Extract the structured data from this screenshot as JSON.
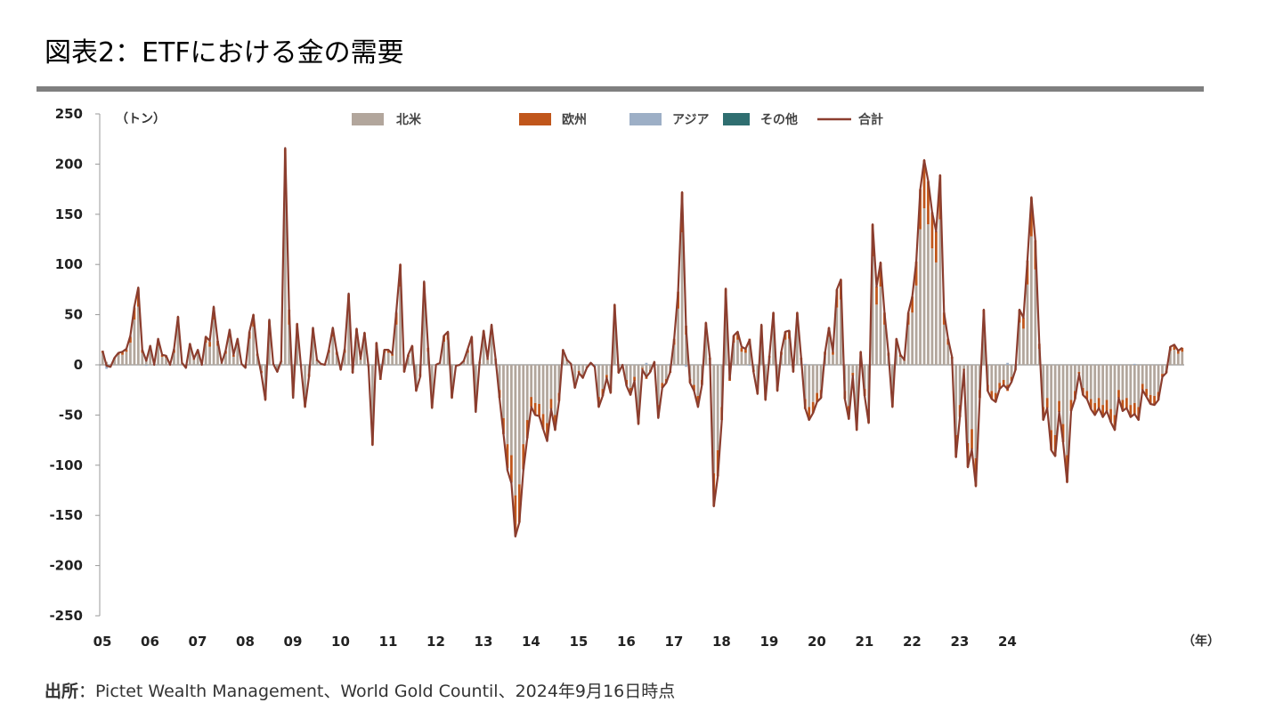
{
  "header": {
    "title": "図表2：ETFにおける金の需要"
  },
  "footer": {
    "source_label": "出所",
    "source_text": "：Pictet Wealth Management、World Gold Countil、2024年9月16日時点"
  },
  "chart_data": {
    "type": "bar",
    "stacked": true,
    "title": "",
    "ylabel": "（トン）",
    "xlabel": "（年）",
    "ylim": [
      -250,
      250
    ],
    "yticks": [
      250,
      200,
      150,
      100,
      50,
      0,
      -50,
      -100,
      -150,
      -200,
      -250
    ],
    "xticks": [
      "05",
      "06",
      "07",
      "08",
      "09",
      "10",
      "11",
      "12",
      "13",
      "14",
      "15",
      "16",
      "17",
      "18",
      "19",
      "20",
      "21",
      "22",
      "23",
      "24"
    ],
    "legend_position": "top",
    "colors": {
      "north_america": "#b2a69c",
      "europe": "#c0561b",
      "asia": "#9dafc6",
      "other": "#2f6e70",
      "total": "#8b3d2e"
    },
    "series": [
      {
        "name": "北米",
        "color": "#b2a69c",
        "values": [
          12,
          3,
          -2,
          6,
          10,
          10,
          13,
          22,
          45,
          58,
          12,
          4,
          15,
          0,
          19,
          8,
          7,
          0,
          12,
          38,
          2,
          -3,
          17,
          5,
          11,
          0,
          22,
          18,
          45,
          19,
          2,
          11,
          27,
          8,
          20,
          1,
          -3,
          26,
          38,
          9,
          -6,
          -25,
          34,
          1,
          -5,
          3,
          170,
          40,
          -23,
          33,
          -2,
          -32,
          -9,
          28,
          4,
          1,
          0,
          12,
          28,
          10,
          -4,
          12,
          55,
          -6,
          28,
          5,
          25,
          -2,
          -62,
          17,
          -12,
          12,
          12,
          9,
          40,
          78,
          -5,
          8,
          15,
          -20,
          -9,
          64,
          13,
          -33,
          0,
          2,
          23,
          25,
          -25,
          -1,
          0,
          3,
          12,
          22,
          -35,
          2,
          26,
          5,
          30,
          5,
          -25,
          -53,
          -79,
          -90,
          -130,
          -119,
          -79,
          -55,
          -32,
          -38,
          -39,
          -49,
          -58,
          -34,
          -50,
          -28,
          12,
          4,
          1,
          -18,
          -6,
          -10,
          -2,
          1,
          0,
          -32,
          -24,
          -10,
          -22,
          47,
          -6,
          0,
          -15,
          -23,
          -12,
          -45,
          -3,
          -11,
          -5,
          2,
          -40,
          -18,
          -14,
          -6,
          20,
          56,
          132,
          30,
          -14,
          -20,
          -31,
          -15,
          32,
          5,
          -108,
          -85,
          -42,
          58,
          -12,
          22,
          25,
          13,
          12,
          20,
          -5,
          -22,
          30,
          -27,
          7,
          40,
          -20,
          10,
          25,
          26,
          -5,
          40,
          5,
          -34,
          -42,
          -37,
          -28,
          -25,
          10,
          28,
          10,
          57,
          65,
          -26,
          -41,
          -8,
          -50,
          10,
          -24,
          -44,
          108,
          60,
          78,
          40,
          9,
          -32,
          20,
          8,
          4,
          40,
          52,
          79,
          135,
          156,
          140,
          116,
          102,
          145,
          40,
          20,
          6,
          -70,
          -40,
          -4,
          -78,
          -64,
          -93,
          -25,
          42,
          -20,
          -26,
          -28,
          -18,
          -15,
          -20,
          -12,
          -4,
          42,
          36,
          80,
          128,
          95,
          16,
          -42,
          -33,
          -65,
          -70,
          -36,
          -59,
          -90,
          -35,
          -26,
          -7,
          -23,
          -26,
          -34,
          -38,
          -33,
          -40,
          -35,
          -44,
          -50,
          -25,
          -35,
          -33,
          -40,
          -38,
          -42,
          -19,
          -24,
          -30,
          -31,
          -27,
          -9,
          -6,
          14,
          15,
          11,
          13
        ]
      },
      {
        "name": "欧州",
        "color": "#c0561b",
        "values": [
          2,
          -1,
          0,
          1,
          2,
          3,
          2,
          6,
          12,
          18,
          3,
          1,
          4,
          0,
          6,
          2,
          2,
          0,
          3,
          10,
          0,
          0,
          4,
          1,
          3,
          0,
          6,
          5,
          12,
          5,
          0,
          3,
          7,
          2,
          5,
          0,
          0,
          7,
          12,
          2,
          -2,
          -10,
          10,
          0,
          -2,
          1,
          45,
          15,
          -8,
          8,
          0,
          -10,
          -3,
          8,
          1,
          0,
          0,
          3,
          8,
          3,
          -1,
          3,
          15,
          -2,
          8,
          1,
          7,
          0,
          -18,
          5,
          -3,
          3,
          3,
          2,
          12,
          22,
          -2,
          2,
          4,
          -6,
          -3,
          18,
          4,
          -10,
          0,
          0,
          6,
          7,
          -8,
          0,
          0,
          1,
          3,
          6,
          -10,
          1,
          8,
          1,
          9,
          1,
          -8,
          -16,
          -24,
          -27,
          -40,
          -38,
          -25,
          -18,
          -10,
          -12,
          -12,
          -15,
          -17,
          -10,
          -15,
          -8,
          3,
          1,
          0,
          -5,
          -2,
          -3,
          -1,
          0,
          0,
          -10,
          -7,
          -3,
          -6,
          13,
          -2,
          0,
          -5,
          -7,
          -4,
          -14,
          -1,
          -3,
          -2,
          1,
          -12,
          -5,
          -4,
          -2,
          6,
          17,
          40,
          9,
          -4,
          -6,
          -10,
          -5,
          10,
          2,
          -33,
          -26,
          -13,
          18,
          -4,
          7,
          8,
          4,
          4,
          6,
          -2,
          -7,
          9,
          -8,
          2,
          12,
          -6,
          3,
          8,
          8,
          -2,
          12,
          2,
          -10,
          -13,
          -11,
          -9,
          -8,
          3,
          9,
          3,
          18,
          20,
          -8,
          -13,
          -3,
          -15,
          3,
          -7,
          -14,
          32,
          18,
          24,
          12,
          3,
          -10,
          6,
          2,
          1,
          12,
          16,
          24,
          40,
          48,
          43,
          36,
          31,
          44,
          12,
          6,
          2,
          -22,
          -12,
          -1,
          -24,
          -20,
          -28,
          -8,
          13,
          -6,
          -8,
          -9,
          -6,
          -5,
          -6,
          -4,
          -1,
          13,
          11,
          24,
          39,
          29,
          5,
          -13,
          -10,
          -20,
          -21,
          -11,
          -18,
          -27,
          -11,
          -8,
          -2,
          -7,
          -8,
          -10,
          -12,
          -10,
          -12,
          -11,
          -13,
          -15,
          -8,
          -11,
          -10,
          -12,
          -12,
          -13,
          -6,
          -7,
          -9,
          -9,
          -8,
          -3,
          -2,
          4,
          5,
          3,
          4
        ]
      },
      {
        "name": "アジア",
        "color": "#9dafc6",
        "values": [
          0,
          -3,
          0,
          0,
          0,
          0,
          1,
          1,
          1,
          1,
          0,
          -1,
          0,
          0,
          1,
          0,
          0,
          0,
          1,
          0,
          0,
          0,
          0,
          0,
          1,
          0,
          0,
          1,
          1,
          0,
          0,
          0,
          1,
          0,
          1,
          0,
          0,
          0,
          0,
          0,
          -1,
          0,
          1,
          0,
          0,
          0,
          1,
          0,
          -2,
          0,
          0,
          0,
          0,
          1,
          0,
          0,
          0,
          0,
          1,
          0,
          0,
          1,
          1,
          0,
          0,
          0,
          0,
          0,
          0,
          0,
          1,
          0,
          0,
          0,
          1,
          0,
          0,
          0,
          0,
          0,
          0,
          1,
          0,
          0,
          0,
          0,
          0,
          1,
          0,
          0,
          0,
          0,
          1,
          0,
          -2,
          0,
          0,
          0,
          1,
          0,
          0,
          0,
          -2,
          -1,
          -1,
          0,
          -1,
          0,
          0,
          0,
          0,
          0,
          -1,
          0,
          0,
          0,
          0,
          0,
          0,
          0,
          0,
          0,
          0,
          1,
          -2,
          0,
          0,
          0,
          0,
          0,
          0,
          0,
          -1,
          0,
          0,
          0,
          -1,
          2,
          0,
          0,
          -1,
          0,
          0,
          1,
          0,
          0,
          0,
          -2,
          0,
          0,
          -1,
          0,
          0,
          0,
          0,
          0,
          0,
          0,
          2,
          0,
          0,
          1,
          0,
          -1,
          0,
          0,
          1,
          0,
          0,
          0,
          0,
          0,
          0,
          0,
          0,
          0,
          0,
          1,
          0,
          0,
          0,
          0,
          -1,
          0,
          0,
          0,
          0,
          0,
          0,
          0,
          0,
          0,
          0,
          0,
          0,
          0,
          0,
          0,
          -1,
          0,
          0,
          0,
          0,
          0,
          0,
          0,
          0,
          0,
          0,
          0,
          0,
          0,
          0,
          0,
          0,
          0,
          0,
          0,
          0,
          0,
          0,
          0,
          0,
          0,
          0,
          0,
          0,
          0,
          2,
          -1,
          0,
          0,
          0,
          0,
          0,
          0,
          0,
          0,
          0,
          0,
          0,
          0,
          0,
          0,
          0,
          0,
          0,
          0,
          0,
          0,
          0,
          0,
          0,
          0,
          0,
          0,
          0,
          0,
          0,
          0,
          1,
          0,
          0,
          -1,
          0,
          0,
          0,
          0,
          0,
          0,
          0,
          0,
          0,
          0,
          -1,
          0,
          0,
          1,
          0,
          0,
          0,
          0,
          0,
          0,
          0,
          0,
          0,
          0,
          0,
          0,
          0,
          0,
          0
        ]
      },
      {
        "name": "その他",
        "color": "#2f6e70",
        "values": [
          0,
          0,
          0,
          0,
          0,
          0,
          0,
          0,
          0,
          0,
          0,
          0,
          0,
          0,
          0,
          0,
          0,
          0,
          0,
          0,
          0,
          0,
          0,
          0,
          0,
          0,
          0,
          0,
          0,
          0,
          0,
          0,
          0,
          0,
          0,
          0,
          0,
          0,
          0,
          0,
          0,
          0,
          0,
          0,
          0,
          0,
          0,
          0,
          0,
          0,
          0,
          0,
          0,
          0,
          0,
          0,
          0,
          0,
          0,
          0,
          0,
          0,
          0,
          0,
          0,
          0,
          0,
          0,
          0,
          0,
          0,
          0,
          0,
          0,
          0,
          0,
          0,
          0,
          0,
          0,
          0,
          0,
          0,
          0,
          0,
          0,
          0,
          0,
          0,
          0,
          0,
          0,
          0,
          0,
          0,
          0,
          0,
          0,
          0,
          0,
          0,
          0,
          0,
          0,
          0,
          0,
          0,
          0,
          0,
          0,
          0,
          0,
          0,
          0,
          0,
          0,
          0,
          0,
          0,
          0,
          0,
          0,
          0,
          0,
          0,
          0,
          0,
          0,
          0,
          0,
          0,
          0,
          0,
          0,
          0,
          0,
          0,
          0,
          0,
          0,
          0,
          0,
          0,
          0,
          0,
          0,
          0,
          0,
          0,
          0,
          0,
          0,
          0,
          0,
          0,
          0,
          0,
          0,
          0,
          0,
          0,
          0,
          0,
          0,
          0,
          0,
          0,
          0,
          0,
          0,
          0,
          0,
          0,
          0,
          0,
          0,
          0,
          0,
          0,
          0,
          0,
          0,
          0,
          0,
          0,
          0,
          0,
          0,
          0,
          0,
          0,
          0,
          0,
          0,
          0,
          0,
          0,
          0,
          0,
          0,
          0,
          0,
          0,
          0,
          0,
          0,
          0,
          0,
          0,
          0,
          0,
          0,
          0,
          0,
          0,
          0,
          0,
          0,
          0,
          0,
          0,
          0,
          0,
          0,
          0,
          0,
          0,
          0,
          0,
          0,
          0,
          0,
          0,
          0,
          0,
          0,
          0,
          0,
          0,
          0,
          0,
          0,
          0,
          0,
          0,
          0,
          0,
          0,
          0,
          0,
          0,
          0,
          0,
          0,
          0,
          0,
          0,
          0,
          0,
          0,
          0,
          0,
          0,
          0,
          0,
          0,
          0,
          0,
          0,
          0,
          0,
          0,
          0,
          0,
          0,
          0,
          0,
          0,
          0,
          0,
          0,
          0,
          0,
          0,
          0,
          0,
          0,
          0,
          0,
          0,
          0
        ]
      },
      {
        "name": "合計",
        "type": "line",
        "color": "#8b3d2e"
      }
    ]
  }
}
